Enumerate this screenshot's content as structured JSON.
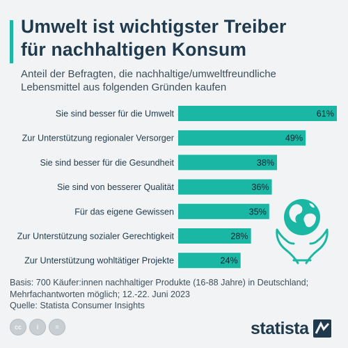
{
  "header": {
    "title_line1": "Umwelt ist wichtigster Treiber",
    "title_line2": "für nachhaltigen Konsum",
    "subtitle_line1": "Anteil der Befragten, die nachhaltige/umweltfreundliche",
    "subtitle_line2": "Lebensmittel aus folgenden Gründen kaufen"
  },
  "chart_data": {
    "type": "bar",
    "orientation": "horizontal",
    "categories": [
      "Sie sind besser für die Umwelt",
      "Zur Unterstützung regionaler Versorger",
      "Sie sind besser für die Gesundheit",
      "Sie sind von besserer Qualität",
      "Für das eigene Gewissen",
      "Zur Unterstützung sozialer Gerechtigkeit",
      "Zur Unterstützung wohltätiger Projekte"
    ],
    "values": [
      61,
      49,
      38,
      36,
      35,
      28,
      24
    ],
    "value_labels": [
      "61%",
      "49%",
      "38%",
      "36%",
      "35%",
      "28%",
      "24%"
    ],
    "unit": "%",
    "xlim": [
      0,
      61
    ],
    "bar_color": "#1ab8a4",
    "grid": false,
    "legend": "none"
  },
  "footer": {
    "basis_line1": "Basis: 700 Käufer:innen nachhaltiger Produkte (16-88 Jahre) in Deutschland;",
    "basis_line2": "Mehrfachantworten möglich; 12.-22. Juni 2023",
    "source": "Quelle: Statista Consumer Insights"
  },
  "brand": {
    "logo_text": "statista",
    "cc_icons": [
      "cc",
      "i",
      "="
    ]
  },
  "icons": {
    "illustration": "globe-in-hands-icon"
  },
  "colors": {
    "accent": "#1ab8a4",
    "title": "#1f3a4d",
    "background": "#f1f3f4"
  }
}
